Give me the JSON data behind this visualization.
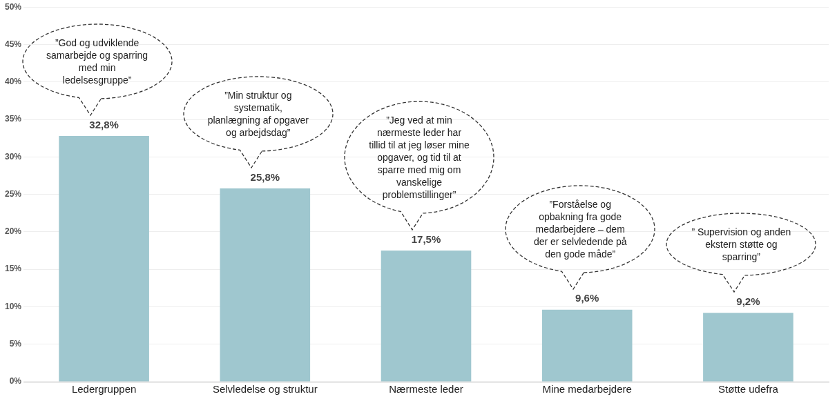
{
  "chart_data": {
    "type": "bar",
    "categories": [
      "Ledergruppen",
      "Selvledelse og struktur",
      "Nærmeste leder",
      "Mine medarbejdere",
      "Støtte udefra"
    ],
    "values": [
      32.8,
      25.8,
      17.5,
      9.6,
      9.2
    ],
    "color": "#9fc7cf",
    "value_labels": [
      "32,8%",
      "25,8%",
      "17,5%",
      "9,6%",
      "9,2%"
    ],
    "ylim": [
      0,
      50
    ],
    "yticks": [
      {
        "value": 0,
        "label": "0%"
      },
      {
        "value": 5,
        "label": "5%"
      },
      {
        "value": 10,
        "label": "10%"
      },
      {
        "value": 15,
        "label": "15%"
      },
      {
        "value": 20,
        "label": "20%"
      },
      {
        "value": 25,
        "label": "25%"
      },
      {
        "value": 30,
        "label": "30%"
      },
      {
        "value": 35,
        "label": "35%"
      },
      {
        "value": 40,
        "label": "40%"
      },
      {
        "value": 45,
        "label": "45%"
      },
      {
        "value": 50,
        "label": "50%"
      }
    ],
    "grid": "y",
    "legend": false,
    "annotations": [
      "”God og udviklende samarbejde og sparring med min ledelsesgruppe”",
      "”Min struktur og systematik, planlægning af opgaver og arbejdsdag”",
      "”Jeg ved at min nærmeste leder har tillid til at jeg løser mine opgaver, og tid til at sparre med mig om vanskelige problemstillinger”",
      "”Forståelse og opbakning fra gode medarbejdere – dem der er selvledende på den gode måde”",
      "” Supervision og anden ekstern støtte og sparring”"
    ]
  }
}
